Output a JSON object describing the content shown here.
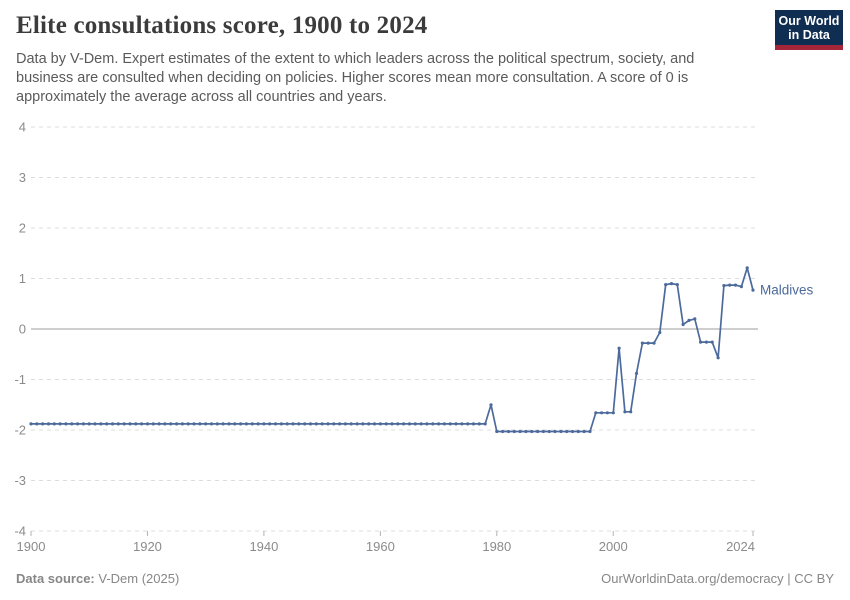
{
  "header": {
    "title": "Elite consultations score, 1900 to 2024",
    "subtitle": "Data by V-Dem. Expert estimates of the extent to which leaders across the political spectrum, society, and business are consulted when deciding on policies. Higher scores mean more consultation. A score of 0 is approximately the average across all countries and years.",
    "logo": {
      "line1": "Our World",
      "line2": "in Data"
    }
  },
  "chart_data": {
    "type": "line",
    "title": "Elite consultations score, 1900 to 2024",
    "x_start": 1900,
    "x_end": 2024,
    "xticks": [
      1900,
      1920,
      1940,
      1960,
      1980,
      2000,
      2024
    ],
    "yticks": [
      4,
      3,
      2,
      1,
      0,
      -1,
      -2,
      -3,
      -4
    ],
    "ylim": [
      -4,
      4
    ],
    "grid": "horizontal dashed gridlines, solid line at zero",
    "legend_position": "entity label right of last point",
    "series": [
      {
        "name": "Maldives",
        "color": "#4c6a9c",
        "values": [
          -1.88,
          -1.88,
          -1.88,
          -1.88,
          -1.88,
          -1.88,
          -1.88,
          -1.88,
          -1.88,
          -1.88,
          -1.88,
          -1.88,
          -1.88,
          -1.88,
          -1.88,
          -1.88,
          -1.88,
          -1.88,
          -1.88,
          -1.88,
          -1.88,
          -1.88,
          -1.88,
          -1.88,
          -1.88,
          -1.88,
          -1.88,
          -1.88,
          -1.88,
          -1.88,
          -1.88,
          -1.88,
          -1.88,
          -1.88,
          -1.88,
          -1.88,
          -1.88,
          -1.88,
          -1.88,
          -1.88,
          -1.88,
          -1.88,
          -1.88,
          -1.88,
          -1.88,
          -1.88,
          -1.88,
          -1.88,
          -1.88,
          -1.88,
          -1.88,
          -1.88,
          -1.88,
          -1.88,
          -1.88,
          -1.88,
          -1.88,
          -1.88,
          -1.88,
          -1.88,
          -1.88,
          -1.88,
          -1.88,
          -1.88,
          -1.88,
          -1.88,
          -1.88,
          -1.88,
          -1.88,
          -1.88,
          -1.88,
          -1.88,
          -1.88,
          -1.88,
          -1.88,
          -1.88,
          -1.88,
          -1.88,
          -1.88,
          -1.5,
          -2.03,
          -2.03,
          -2.03,
          -2.03,
          -2.03,
          -2.03,
          -2.03,
          -2.03,
          -2.03,
          -2.03,
          -2.03,
          -2.03,
          -2.03,
          -2.03,
          -2.03,
          -2.03,
          -2.03,
          -1.66,
          -1.66,
          -1.66,
          -1.66,
          -0.38,
          -1.64,
          -1.64,
          -0.88,
          -0.28,
          -0.28,
          -0.28,
          -0.07,
          0.88,
          0.9,
          0.88,
          0.09,
          0.17,
          0.2,
          -0.26,
          -0.26,
          -0.26,
          -0.57,
          0.86,
          0.87,
          0.87,
          0.84,
          1.21,
          0.77
        ]
      }
    ]
  },
  "footer": {
    "source_label": "Data source:",
    "source_value": " V-Dem (2025)",
    "credit": "OurWorldinData.org/democracy | CC BY"
  },
  "colors": {
    "line": "#4c6a9c",
    "gridline": "#dcdcdc",
    "zero_line": "#9e9e9e",
    "axis_text": "#8b8b8b",
    "logo_bg": "#102d52",
    "logo_bar": "#a52639"
  }
}
